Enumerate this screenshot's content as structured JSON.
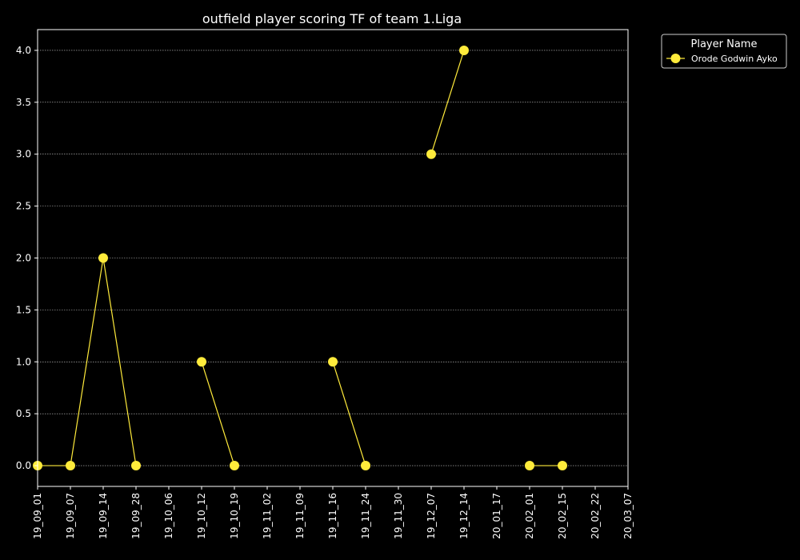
{
  "chart_data": {
    "type": "line",
    "title": "outfield player scoring TF of team 1.Liga",
    "xlabel": "",
    "ylabel": "",
    "categories": [
      "19_09_01",
      "19_09_07",
      "19_09_14",
      "19_09_28",
      "19_10_06",
      "19_10_12",
      "19_10_19",
      "19_11_02",
      "19_11_09",
      "19_11_16",
      "19_11_24",
      "19_11_30",
      "19_12_07",
      "19_12_14",
      "20_01_17",
      "20_02_01",
      "20_02_15",
      "20_02_22",
      "20_03_07"
    ],
    "yticks": [
      "0.0",
      "0.5",
      "1.0",
      "1.5",
      "2.0",
      "2.5",
      "3.0",
      "3.5",
      "4.0"
    ],
    "ylim": [
      -0.2,
      4.2
    ],
    "grid": true,
    "legend": {
      "title": "Player Name",
      "placement": "outside top-right"
    },
    "series": [
      {
        "name": "Orode Godwin Ayko",
        "color": "#ffeb3b",
        "values": [
          0,
          0,
          2,
          0,
          null,
          1,
          0,
          null,
          null,
          1,
          0,
          null,
          3,
          4,
          null,
          0,
          0,
          null,
          null
        ]
      }
    ]
  }
}
